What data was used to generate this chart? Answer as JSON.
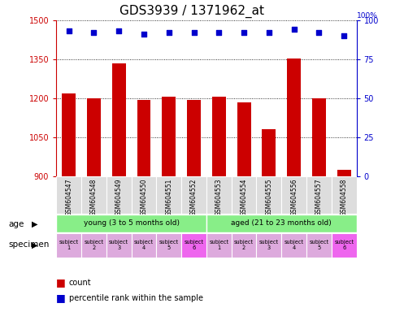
{
  "title": "GDS3939 / 1371962_at",
  "samples": [
    "GSM604547",
    "GSM604548",
    "GSM604549",
    "GSM604550",
    "GSM604551",
    "GSM604552",
    "GSM604553",
    "GSM604554",
    "GSM604555",
    "GSM604556",
    "GSM604557",
    "GSM604558"
  ],
  "counts": [
    1220,
    1200,
    1335,
    1195,
    1205,
    1195,
    1205,
    1185,
    1080,
    1352,
    1200,
    925
  ],
  "percentiles": [
    93,
    92,
    93,
    91,
    92,
    92,
    92,
    92,
    92,
    94,
    92,
    90
  ],
  "ylim_left": [
    900,
    1500
  ],
  "ylim_right": [
    0,
    100
  ],
  "yticks_left": [
    900,
    1050,
    1200,
    1350,
    1500
  ],
  "yticks_right": [
    0,
    25,
    50,
    75,
    100
  ],
  "bar_color": "#cc0000",
  "dot_color": "#0000cc",
  "age_groups": [
    {
      "label": "young (3 to 5 months old)",
      "start": 0,
      "end": 6,
      "color": "#88ee88"
    },
    {
      "label": "aged (21 to 23 months old)",
      "start": 6,
      "end": 12,
      "color": "#88ee88"
    }
  ],
  "specimen_colors": [
    "#ddaadd",
    "#ddaadd",
    "#ddaadd",
    "#ddaadd",
    "#ddaadd",
    "#ee66ee",
    "#ddaadd",
    "#ddaadd",
    "#ddaadd",
    "#ddaadd",
    "#ddaadd",
    "#ee66ee"
  ],
  "specimen_labels": [
    "subject\n1",
    "subject\n2",
    "subject\n3",
    "subject\n4",
    "subject\n5",
    "subject\n6",
    "subject\n1",
    "subject\n2",
    "subject\n3",
    "subject\n4",
    "subject\n5",
    "subject\n6"
  ],
  "grid_color": "#888888",
  "title_fontsize": 11,
  "axis_color_left": "#cc0000",
  "axis_color_right": "#0000cc",
  "bar_bottom": 900
}
